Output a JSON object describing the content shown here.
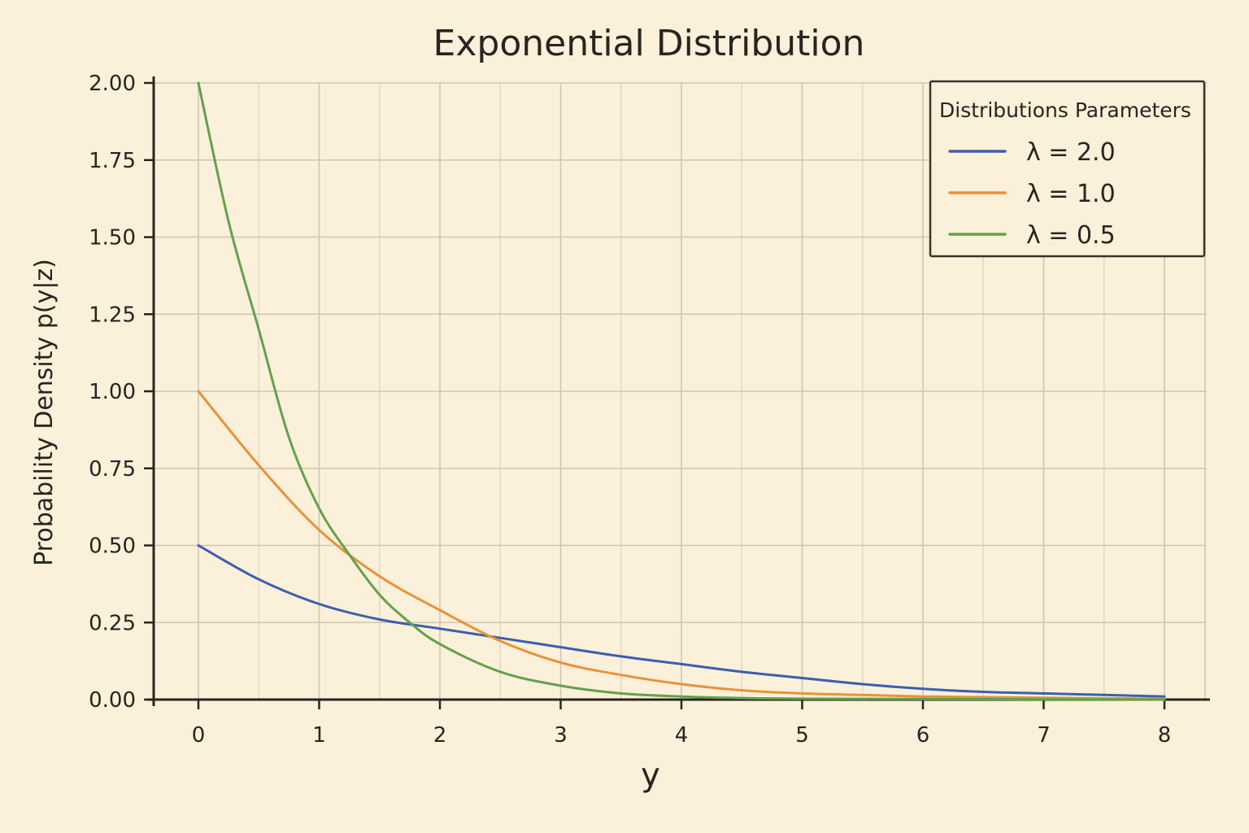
{
  "chart_data": {
    "type": "line",
    "title": "Exponential Distribution",
    "xlabel": "y",
    "ylabel": "Probability Density p(y|z)",
    "xlim": [
      0,
      8
    ],
    "ylim": [
      0,
      2
    ],
    "xticks": [
      0,
      1,
      2,
      3,
      4,
      5,
      6,
      7,
      8
    ],
    "yticks": [
      0,
      0.25,
      0.5,
      0.75,
      1.0,
      1.25,
      1.5,
      1.75,
      2.0
    ],
    "xtick_labels": [
      "0",
      "1",
      "2",
      "3",
      "4",
      "5",
      "6",
      "7",
      "8"
    ],
    "ytick_labels": [
      "0.00",
      "0.25",
      "0.50",
      "0.75",
      "1.00",
      "1.25",
      "1.50",
      "1.75",
      "2.00"
    ],
    "grid": true,
    "legend": {
      "title": "Distributions Parameters",
      "placement": "top-right"
    },
    "series": [
      {
        "name": "λ = 2.0",
        "color": "#3a5fb0",
        "x": [
          0,
          0.5,
          1,
          1.5,
          2,
          2.5,
          3,
          3.5,
          4,
          4.5,
          5,
          5.5,
          6,
          6.5,
          7,
          7.5,
          8
        ],
        "values": [
          0.5,
          0.39,
          0.31,
          0.26,
          0.23,
          0.2,
          0.17,
          0.14,
          0.115,
          0.09,
          0.07,
          0.05,
          0.035,
          0.025,
          0.02,
          0.015,
          0.01
        ]
      },
      {
        "name": "λ = 1.0",
        "color": "#e8923a",
        "x": [
          0,
          0.5,
          1,
          1.5,
          2,
          2.5,
          3,
          3.5,
          4,
          4.5,
          5,
          5.5,
          6,
          6.5,
          7,
          7.5,
          8
        ],
        "values": [
          1.0,
          0.76,
          0.55,
          0.4,
          0.29,
          0.19,
          0.12,
          0.08,
          0.05,
          0.03,
          0.02,
          0.015,
          0.01,
          0.008,
          0.006,
          0.004,
          0.003
        ]
      },
      {
        "name": "λ = 0.5",
        "color": "#62a24c",
        "x": [
          0,
          0.25,
          0.5,
          0.75,
          1,
          1.25,
          1.5,
          1.75,
          2,
          2.5,
          3,
          3.5,
          4,
          4.5,
          5,
          6,
          7,
          8
        ],
        "values": [
          2.0,
          1.55,
          1.2,
          0.85,
          0.62,
          0.47,
          0.34,
          0.25,
          0.18,
          0.09,
          0.045,
          0.02,
          0.01,
          0.005,
          0.003,
          0.002,
          0.001,
          0.0
        ]
      }
    ]
  }
}
